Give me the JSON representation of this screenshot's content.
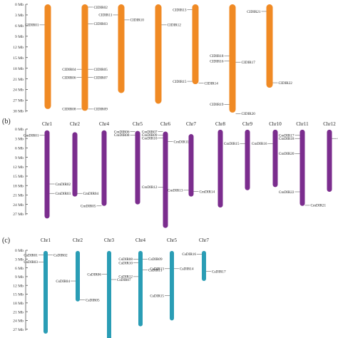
{
  "panels": [
    {
      "label": "",
      "color": "#F08A24",
      "chromosomes": [
        {
          "name": "",
          "start": 0,
          "end": 29.5
        },
        {
          "name": "",
          "start": 0,
          "end": 30
        },
        {
          "name": "",
          "start": 0,
          "end": 25
        },
        {
          "name": "",
          "start": 0,
          "end": 28
        },
        {
          "name": "",
          "start": 0,
          "end": 22.5
        },
        {
          "name": "",
          "start": 0,
          "end": 30.5
        },
        {
          "name": "",
          "start": 0,
          "end": 23.5
        }
      ],
      "genes": [
        {
          "name": "CIDIR02",
          "chr": 1,
          "pos": 0.8,
          "side": "right"
        },
        {
          "name": "CIDIR10",
          "chr": 2,
          "pos": 4.4,
          "side": "right"
        },
        {
          "name": "CIDIR03",
          "chr": 1,
          "pos": 5.5,
          "side": "right"
        },
        {
          "name": "CIDIR01",
          "chr": 0,
          "pos": 5.8,
          "side": "left"
        },
        {
          "name": "CIDIR11",
          "chr": 2,
          "pos": 3.0,
          "side": "left"
        },
        {
          "name": "CIDIR12",
          "chr": 3,
          "pos": 5.8,
          "side": "right"
        },
        {
          "name": "CIDIR13",
          "chr": 4,
          "pos": 1.5,
          "side": "left"
        },
        {
          "name": "CIDIR21",
          "chr": 6,
          "pos": 2.0,
          "side": "left"
        },
        {
          "name": "CIDIR18",
          "chr": 5,
          "pos": 14.5,
          "side": "left"
        },
        {
          "name": "CIDIR16",
          "chr": 5,
          "pos": 16.0,
          "side": "left"
        },
        {
          "name": "CIDIR17",
          "chr": 5,
          "pos": 16.3,
          "side": "right"
        },
        {
          "name": "CIDIR04",
          "chr": 1,
          "pos": 18.3,
          "side": "left"
        },
        {
          "name": "CIDIR05",
          "chr": 1,
          "pos": 18.3,
          "side": "right"
        },
        {
          "name": "CIDIR06",
          "chr": 1,
          "pos": 20.6,
          "side": "left"
        },
        {
          "name": "CIDIR07",
          "chr": 1,
          "pos": 20.6,
          "side": "right"
        },
        {
          "name": "CIDIR15",
          "chr": 4,
          "pos": 21.7,
          "side": "left"
        },
        {
          "name": "CIDIR14",
          "chr": 4,
          "pos": 22.2,
          "side": "right"
        },
        {
          "name": "CIDIR22",
          "chr": 6,
          "pos": 22.1,
          "side": "right"
        },
        {
          "name": "CIDIR08",
          "chr": 1,
          "pos": 29.5,
          "side": "left"
        },
        {
          "name": "CIDIR09",
          "chr": 1,
          "pos": 29.5,
          "side": "right"
        },
        {
          "name": "CIDIR19",
          "chr": 5,
          "pos": 28.2,
          "side": "left"
        },
        {
          "name": "CIDIR20",
          "chr": 5,
          "pos": 30.8,
          "side": "right"
        }
      ]
    },
    {
      "label": "(b)",
      "color": "#7B2D8E",
      "chromosomes": [
        {
          "name": "Chr1",
          "start": 0.4,
          "end": 28.5
        },
        {
          "name": "Chr2",
          "start": 1.0,
          "end": 21.5
        },
        {
          "name": "Chr4",
          "start": 0.4,
          "end": 24.5
        },
        {
          "name": "Chr5",
          "start": 0.6,
          "end": 24.0
        },
        {
          "name": "Chr6",
          "start": 0.8,
          "end": 31.5
        },
        {
          "name": "Chr7",
          "start": 1.6,
          "end": 21.5
        },
        {
          "name": "Chr8",
          "start": 0.2,
          "end": 25.0
        },
        {
          "name": "Chr9",
          "start": 0.2,
          "end": 19.5
        },
        {
          "name": "Chr10",
          "start": 0.2,
          "end": 18.5
        },
        {
          "name": "Chr11",
          "start": 0.2,
          "end": 24.5
        },
        {
          "name": "Chr12",
          "start": 0.2,
          "end": 20.0
        }
      ],
      "genes": [
        {
          "name": "CmDIR01",
          "chr": 0,
          "pos": 2.0,
          "side": "left"
        },
        {
          "name": "CmDIR02",
          "chr": 0,
          "pos": 17.5,
          "side": "right"
        },
        {
          "name": "CmDIR03",
          "chr": 0,
          "pos": 20.5,
          "side": "right"
        },
        {
          "name": "CmDIR04",
          "chr": 1,
          "pos": 20.5,
          "side": "right"
        },
        {
          "name": "CmDIR05",
          "chr": 2,
          "pos": 24.5,
          "side": "left"
        },
        {
          "name": "CmDIR06",
          "chr": 3,
          "pos": 0.8,
          "side": "left"
        },
        {
          "name": "CmDIR08",
          "chr": 3,
          "pos": 1.9,
          "side": "left"
        },
        {
          "name": "CmDIR07",
          "chr": 4,
          "pos": 0.8,
          "side": "left"
        },
        {
          "name": "CmDIR09",
          "chr": 4,
          "pos": 1.9,
          "side": "left"
        },
        {
          "name": "CmDIR10",
          "chr": 4,
          "pos": 2.9,
          "side": "left"
        },
        {
          "name": "CmDIR11",
          "chr": 4,
          "pos": 4.0,
          "side": "right"
        },
        {
          "name": "CmDIR12",
          "chr": 4,
          "pos": 18.5,
          "side": "left"
        },
        {
          "name": "CmDIR13",
          "chr": 5,
          "pos": 19.5,
          "side": "left"
        },
        {
          "name": "CmDIR14",
          "chr": 5,
          "pos": 19.9,
          "side": "right"
        },
        {
          "name": "CmDIR15",
          "chr": 7,
          "pos": 4.6,
          "side": "left"
        },
        {
          "name": "CmDIR16",
          "chr": 8,
          "pos": 4.6,
          "side": "left"
        },
        {
          "name": "CmDIR17",
          "chr": 9,
          "pos": 2.0,
          "side": "left"
        },
        {
          "name": "CmDIR18",
          "chr": 9,
          "pos": 3.0,
          "side": "left"
        },
        {
          "name": "CmDIR19",
          "chr": 10,
          "pos": 3.0,
          "side": "right"
        },
        {
          "name": "CmDIR20",
          "chr": 9,
          "pos": 7.8,
          "side": "left"
        },
        {
          "name": "CmDIR22",
          "chr": 9,
          "pos": 20.0,
          "side": "left"
        },
        {
          "name": "CmDIR21",
          "chr": 9,
          "pos": 24.3,
          "side": "right"
        }
      ]
    },
    {
      "label": "(c)",
      "color": "#2A9DB5",
      "chromosomes": [
        {
          "name": "Chr1",
          "start": 0.2,
          "end": 28.5
        },
        {
          "name": "Chr2",
          "start": 0.2,
          "end": 17.5
        },
        {
          "name": "Chr3",
          "start": 0.2,
          "end": 31.5
        },
        {
          "name": "Chr4",
          "start": 0.2,
          "end": 26.0
        },
        {
          "name": "Chr5",
          "start": 0.2,
          "end": 24.0
        },
        {
          "name": "Chr7",
          "start": 0.2,
          "end": 10.5
        }
      ],
      "genes": [
        {
          "name": "CsDIR01",
          "chr": 0,
          "pos": 1.6,
          "side": "left"
        },
        {
          "name": "CsDIR02",
          "chr": 0,
          "pos": 1.6,
          "side": "right"
        },
        {
          "name": "CsDIR03",
          "chr": 0,
          "pos": 4.0,
          "side": "left"
        },
        {
          "name": "CsDIR04",
          "chr": 1,
          "pos": 10.5,
          "side": "left"
        },
        {
          "name": "CsDIR05",
          "chr": 1,
          "pos": 17.0,
          "side": "right"
        },
        {
          "name": "CsDIR06",
          "chr": 2,
          "pos": 8.2,
          "side": "left"
        },
        {
          "name": "CsDIR07",
          "chr": 2,
          "pos": 10.0,
          "side": "right"
        },
        {
          "name": "CsDIR08",
          "chr": 3,
          "pos": 3.0,
          "side": "left"
        },
        {
          "name": "CsDIR10",
          "chr": 3,
          "pos": 4.3,
          "side": "left"
        },
        {
          "name": "CsDIR09",
          "chr": 3,
          "pos": 3.0,
          "side": "right"
        },
        {
          "name": "CsDIR11",
          "chr": 3,
          "pos": 6.7,
          "side": "right"
        },
        {
          "name": "CsDIR12",
          "chr": 3,
          "pos": 9.0,
          "side": "left"
        },
        {
          "name": "CsDIR13",
          "chr": 4,
          "pos": 6.3,
          "side": "left"
        },
        {
          "name": "CsDIR14",
          "chr": 4,
          "pos": 6.3,
          "side": "right"
        },
        {
          "name": "CsDIR15",
          "chr": 4,
          "pos": 15.5,
          "side": "left"
        },
        {
          "name": "CsDIR16",
          "chr": 5,
          "pos": 1.3,
          "side": "left"
        },
        {
          "name": "CsDIR17",
          "chr": 5,
          "pos": 7.2,
          "side": "right"
        }
      ]
    }
  ],
  "axis": {
    "unit": "Mb",
    "ticks": [
      {
        "v": 0,
        "label": "0 Mb"
      },
      {
        "v": 3,
        "label": "3 Mb"
      },
      {
        "v": 6,
        "label": "6 Mb"
      },
      {
        "v": 9,
        "label": "9 Mb"
      },
      {
        "v": 12,
        "label": "12 Mb"
      },
      {
        "v": 15,
        "label": "15 Mb"
      },
      {
        "v": 18,
        "label": "18 Mb"
      },
      {
        "v": 21,
        "label": "21 Mb"
      },
      {
        "v": 24,
        "label": "24 Mb"
      },
      {
        "v": 27,
        "label": "27 Mb"
      },
      {
        "v": 30,
        "label": "30 Mb"
      }
    ]
  }
}
